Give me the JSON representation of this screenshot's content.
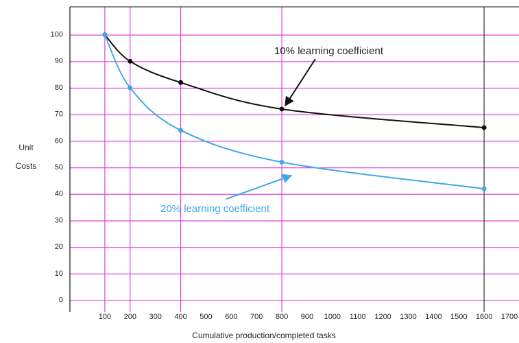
{
  "chart_data": {
    "type": "line",
    "xlabel": "Cumulative production/completed tasks",
    "ylabel": [
      "Unit",
      "Costs"
    ],
    "annotations": [
      "10% learning coefficient",
      "20% learning coefficient"
    ],
    "series": [
      {
        "name": "10% learning coefficient",
        "color": "#111111",
        "x": [
          100,
          200,
          400,
          800,
          1600
        ],
        "values": [
          100,
          90,
          82,
          72,
          65
        ]
      },
      {
        "name": "20% learning coefficient",
        "color": "#3fa9e6",
        "x": [
          100,
          200,
          400,
          800,
          1600
        ],
        "values": [
          100,
          80,
          64,
          52,
          42
        ]
      }
    ],
    "xlim": [
      -38,
      1738
    ],
    "xticks": [
      100,
      200,
      300,
      400,
      500,
      600,
      700,
      800,
      900,
      1000,
      1100,
      1200,
      1300,
      1400,
      1500,
      1600,
      1700
    ],
    "ylim": [
      -4.5,
      110.5
    ],
    "yticks": [
      0,
      10,
      20,
      30,
      40,
      50,
      60,
      70,
      80,
      90,
      100
    ],
    "grid": true,
    "grid_color": "#e040e0",
    "vlines": [
      {
        "value": 100,
        "color": "#e040e0"
      },
      {
        "value": 200,
        "color": "#e040e0"
      },
      {
        "value": 400,
        "color": "#e040e0"
      },
      {
        "value": 800,
        "color": "#e040e0"
      },
      {
        "value": 1600,
        "color": "#333333"
      }
    ]
  }
}
